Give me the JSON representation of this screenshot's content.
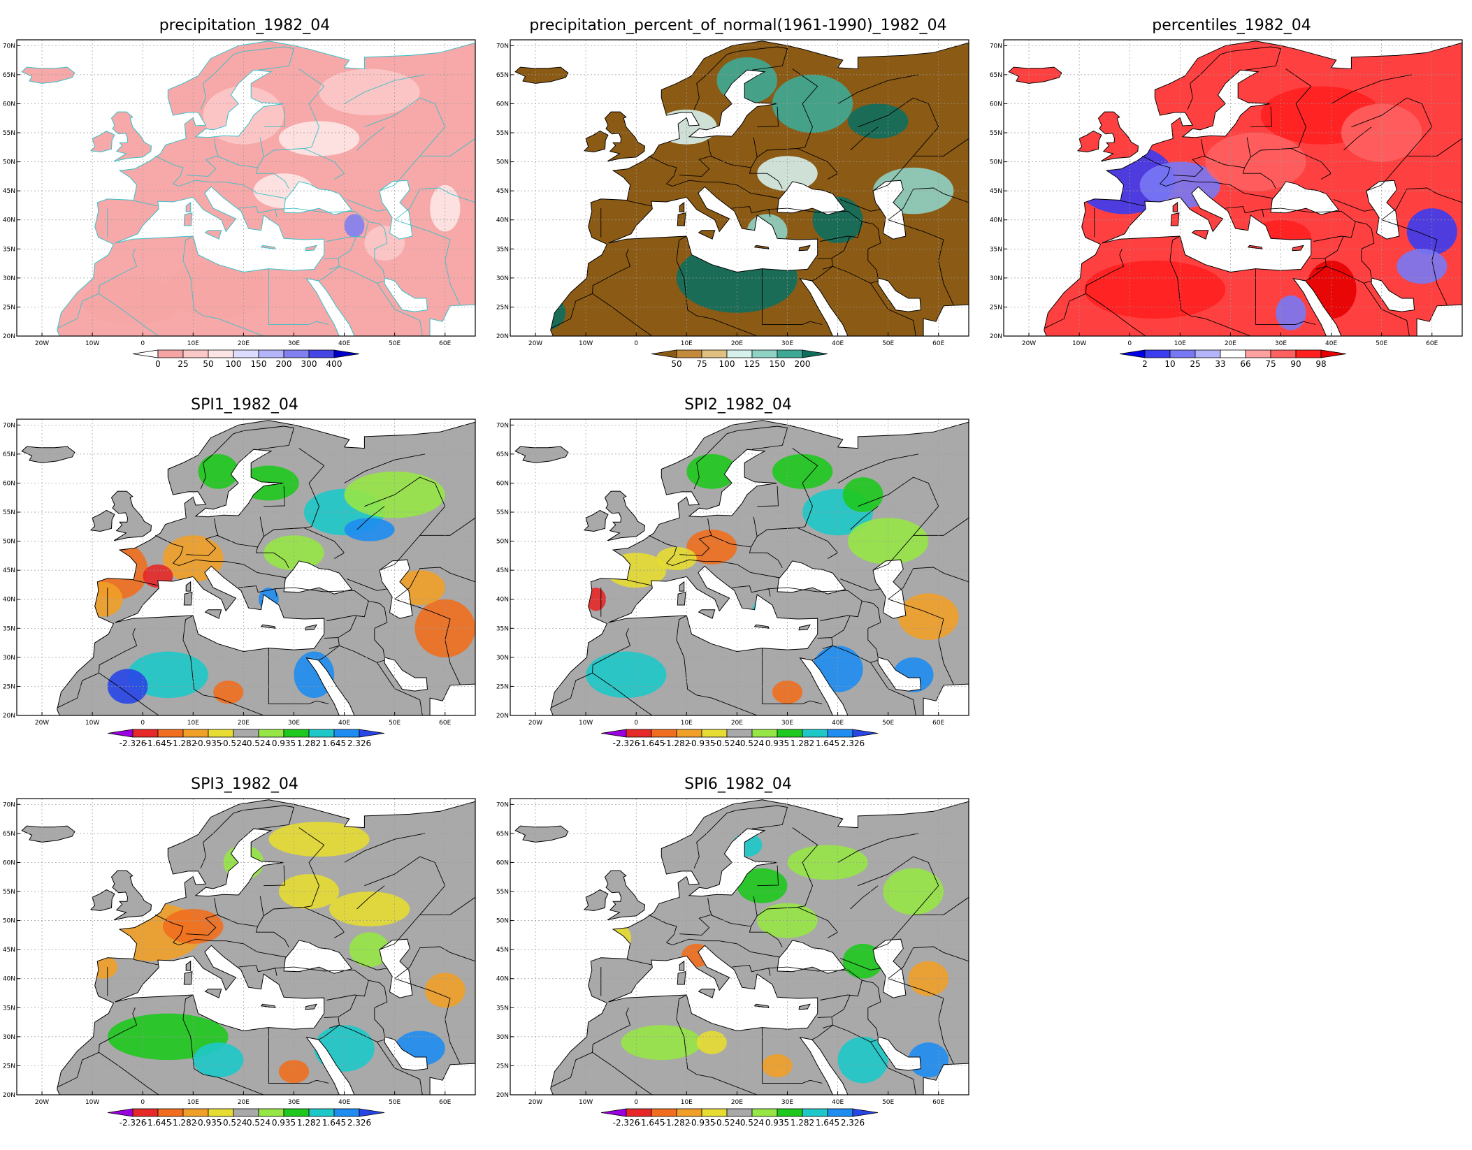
{
  "lat_labels": [
    "70N",
    "65N",
    "60N",
    "55N",
    "50N",
    "45N",
    "40N",
    "35N",
    "30N",
    "25N",
    "20N"
  ],
  "lon_labels": [
    "20W",
    "10W",
    "0",
    "10E",
    "20E",
    "30E",
    "40E",
    "50E",
    "60E"
  ],
  "panels": [
    {
      "id": "precipitation",
      "title": "precipitation_1982_04",
      "variable": "precipitation",
      "base_color": "#f7a8a8",
      "coastline_color": "#38c0c8",
      "colorbar": {
        "labels": [
          "0",
          "25",
          "50",
          "100",
          "150",
          "200",
          "300",
          "400"
        ],
        "colors": [
          "#ffffff",
          "#f6a5a5",
          "#fbc8c8",
          "#fde5e5",
          "#dcdcff",
          "#b4b4fb",
          "#8080f0",
          "#4646e6",
          "#0000c8"
        ]
      }
    },
    {
      "id": "percent-of-normal",
      "title": "precipitation_percent_of_normal(1961-1990)_1982_04",
      "variable": "precipitation percent of normal",
      "base_color": "#8b5a14",
      "coastline_color": "#000000",
      "colorbar": {
        "labels": [
          "50",
          "75",
          "100",
          "125",
          "150",
          "200"
        ],
        "colors": [
          "#8b5a14",
          "#c48a3c",
          "#e0c080",
          "#d6f0ec",
          "#8fd2c4",
          "#3ea896",
          "#0e6e5e"
        ]
      }
    },
    {
      "id": "percentiles",
      "title": "percentiles_1982_04",
      "variable": "percentiles",
      "base_color": "#ff4040",
      "coastline_color": "#000000",
      "colorbar": {
        "labels": [
          "2",
          "10",
          "25",
          "33",
          "66",
          "75",
          "90",
          "98"
        ],
        "colors": [
          "#0000e6",
          "#3c3cf0",
          "#7878f5",
          "#b4b4fa",
          "#ffffff",
          "#ffa0a0",
          "#ff6060",
          "#ff2020",
          "#e60000"
        ]
      }
    },
    {
      "id": "spi1",
      "title": "SPI1_1982_04",
      "variable": "SPI1",
      "base_color": "#a9a9a9",
      "coastline_color": "#000000",
      "colorbar": {
        "labels": [
          "-2.326",
          "-1.645",
          "-1.282",
          "-0.935",
          "-0.524",
          "0.524",
          "0.935",
          "1.282",
          "1.645",
          "2.326"
        ],
        "colors": [
          "#9b00e0",
          "#e62828",
          "#f06e1e",
          "#f0a028",
          "#e6dc32",
          "#a9a9a9",
          "#96e646",
          "#1ec81e",
          "#1ec8c8",
          "#1e8cf0",
          "#2846e6"
        ]
      }
    },
    {
      "id": "spi2",
      "title": "SPI2_1982_04",
      "variable": "SPI2",
      "base_color": "#a9a9a9",
      "coastline_color": "#000000",
      "colorbar": {
        "labels": [
          "-2.326",
          "-1.645",
          "-1.282",
          "-0.935",
          "-0.524",
          "0.524",
          "0.935",
          "1.282",
          "1.645",
          "2.326"
        ],
        "colors": [
          "#9b00e0",
          "#e62828",
          "#f06e1e",
          "#f0a028",
          "#e6dc32",
          "#a9a9a9",
          "#96e646",
          "#1ec81e",
          "#1ec8c8",
          "#1e8cf0",
          "#2846e6"
        ]
      }
    },
    {
      "id": "spi3",
      "title": "SPI3_1982_04",
      "variable": "SPI3",
      "base_color": "#a9a9a9",
      "coastline_color": "#000000",
      "colorbar": {
        "labels": [
          "-2.326",
          "-1.645",
          "-1.282",
          "-0.935",
          "-0.524",
          "0.524",
          "0.935",
          "1.282",
          "1.645",
          "2.326"
        ],
        "colors": [
          "#9b00e0",
          "#e62828",
          "#f06e1e",
          "#f0a028",
          "#e6dc32",
          "#a9a9a9",
          "#96e646",
          "#1ec81e",
          "#1ec8c8",
          "#1e8cf0",
          "#2846e6"
        ]
      }
    },
    {
      "id": "spi6",
      "title": "SPI6_1982_04",
      "variable": "SPI6",
      "base_color": "#a9a9a9",
      "coastline_color": "#000000",
      "colorbar": {
        "labels": [
          "-2.326",
          "-1.645",
          "-1.282",
          "-0.935",
          "-0.524",
          "0.524",
          "0.935",
          "1.282",
          "1.645",
          "2.326"
        ],
        "colors": [
          "#9b00e0",
          "#e62828",
          "#f06e1e",
          "#f0a028",
          "#e6dc32",
          "#a9a9a9",
          "#96e646",
          "#1ec81e",
          "#1ec8c8",
          "#1e8cf0",
          "#2846e6"
        ]
      }
    }
  ]
}
